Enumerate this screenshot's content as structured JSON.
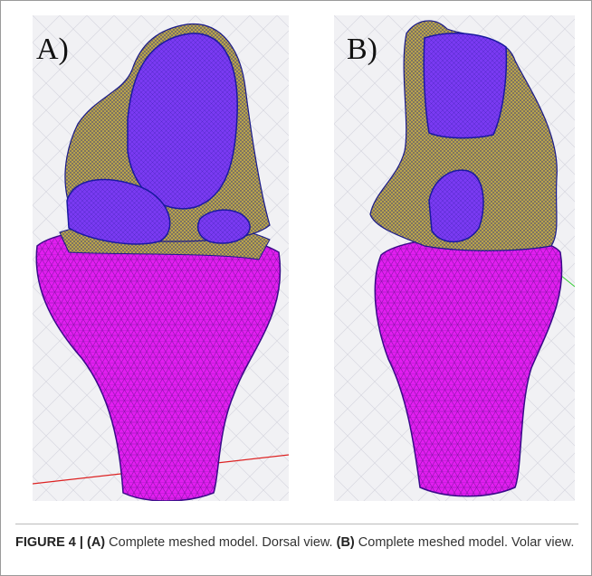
{
  "figure": {
    "panels": [
      {
        "label": "A)"
      },
      {
        "label": "B)"
      }
    ]
  },
  "caption": {
    "figure_label": "FIGURE 4 |",
    "a_label": "(A)",
    "a_text": "Complete meshed model. Dorsal view.",
    "b_label": "(B)",
    "b_text": "Complete meshed model. Volar view."
  }
}
